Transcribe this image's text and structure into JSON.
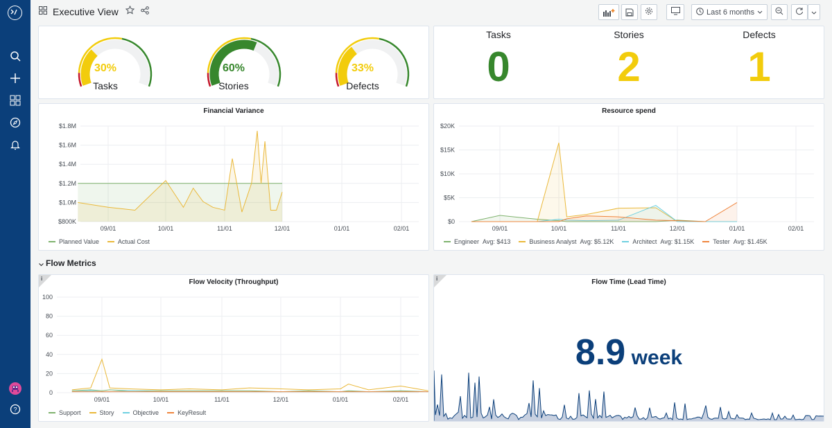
{
  "app": {
    "title": "Executive View"
  },
  "toolbar": {
    "time_range": "Last 6 months"
  },
  "gauges": [
    {
      "label": "Tasks",
      "value": "30%",
      "color": "#f2cc0c"
    },
    {
      "label": "Stories",
      "value": "60%",
      "color": "#37872d"
    },
    {
      "label": "Defects",
      "value": "33%",
      "color": "#f2cc0c"
    }
  ],
  "stats": [
    {
      "label": "Tasks",
      "value": "0",
      "color": "#37872d"
    },
    {
      "label": "Stories",
      "value": "2",
      "color": "#f2cc0c"
    },
    {
      "label": "Defects",
      "value": "1",
      "color": "#f2cc0c"
    }
  ],
  "financial": {
    "title": "Financial Variance",
    "y_ticks": [
      "$1.8M",
      "$1.6M",
      "$1.4M",
      "$1.2M",
      "$1.0M",
      "$800K"
    ],
    "x_ticks": [
      "09/01",
      "10/01",
      "11/01",
      "12/01",
      "01/01",
      "02/01"
    ],
    "legend": [
      "Planned Value",
      "Actual Cost"
    ]
  },
  "resource": {
    "title": "Resource spend",
    "y_ticks": [
      "$20K",
      "$15K",
      "$10K",
      "$5K",
      "$0"
    ],
    "x_ticks": [
      "09/01",
      "10/01",
      "11/01",
      "12/01",
      "01/01",
      "02/01"
    ],
    "legend": [
      {
        "name": "Engineer",
        "avg": "Avg: $413"
      },
      {
        "name": "Business Analyst",
        "avg": "Avg: $5.12K"
      },
      {
        "name": "Architect",
        "avg": "Avg: $1.15K"
      },
      {
        "name": "Tester",
        "avg": "Avg: $1.45K"
      }
    ]
  },
  "row": {
    "title": "Flow Metrics"
  },
  "velocity": {
    "title": "Flow Velocity (Throughput)",
    "y_ticks": [
      "100",
      "80",
      "60",
      "40",
      "20",
      "0"
    ],
    "x_ticks": [
      "09/01",
      "10/01",
      "11/01",
      "12/01",
      "01/01",
      "02/01"
    ],
    "legend": [
      "Support",
      "Story",
      "Objective",
      "KeyResult"
    ]
  },
  "flow_time": {
    "title": "Flow Time (Lead Time)",
    "value": "8.9",
    "unit": "week"
  },
  "colors": {
    "green": "#37872d",
    "yellow": "#f2cc0c",
    "red": "#c4162a",
    "navy": "#0b3f7a",
    "line_green": "#7eb26d",
    "line_yellow": "#eab839",
    "line_teal": "#6ed0e0",
    "line_orange": "#ef843c"
  },
  "chart_data": [
    {
      "type": "area",
      "title": "Financial Variance",
      "x": [
        "08/15",
        "08/31",
        "09/15",
        "10/01",
        "10/10",
        "10/15",
        "10/20",
        "10/25",
        "11/01",
        "11/05",
        "11/10",
        "11/15",
        "11/18",
        "11/20",
        "11/22",
        "11/25",
        "11/28",
        "12/01"
      ],
      "series": [
        {
          "name": "Planned Value",
          "values": [
            1200000,
            1200000,
            1200000,
            1200000,
            1200000,
            1200000,
            1200000,
            1200000,
            1200000,
            1200000,
            1200000,
            1200000,
            1200000,
            1200000,
            1200000,
            1200000,
            1200000,
            1200000
          ]
        },
        {
          "name": "Actual Cost",
          "values": [
            1000000,
            950000,
            920000,
            1230000,
            950000,
            1150000,
            1010000,
            950000,
            920000,
            1460000,
            900000,
            1200000,
            1750000,
            1200000,
            1640000,
            920000,
            920000,
            1110000
          ]
        }
      ],
      "ylim": [
        800000,
        1800000
      ]
    },
    {
      "type": "area",
      "title": "Resource spend",
      "x": [
        "08/15",
        "09/01",
        "09/20",
        "10/01",
        "10/05",
        "10/15",
        "11/01",
        "11/20",
        "12/01",
        "12/15",
        "01/01"
      ],
      "series": [
        {
          "name": "Engineer",
          "values": [
            0,
            1300,
            500,
            200,
            0,
            0,
            0,
            0,
            300,
            0,
            0
          ]
        },
        {
          "name": "Business Analyst",
          "values": [
            0,
            0,
            0,
            16500,
            1000,
            1500,
            2800,
            2900,
            0,
            0,
            0
          ]
        },
        {
          "name": "Architect",
          "values": [
            0,
            0,
            0,
            500,
            300,
            200,
            300,
            3400,
            0,
            0,
            0
          ]
        },
        {
          "name": "Tester",
          "values": [
            0,
            0,
            0,
            0,
            600,
            1200,
            1000,
            300,
            200,
            0,
            4000
          ]
        }
      ],
      "ylim": [
        0,
        20000
      ]
    },
    {
      "type": "line",
      "title": "Flow Velocity (Throughput)",
      "x": [
        "08/15",
        "08/25",
        "09/01",
        "09/05",
        "09/15",
        "10/01",
        "10/15",
        "11/01",
        "11/15",
        "12/01",
        "12/15",
        "01/01",
        "01/05",
        "01/15",
        "02/01",
        "02/15"
      ],
      "series": [
        {
          "name": "Support",
          "values": [
            2,
            3,
            2,
            3,
            2,
            2,
            2,
            2,
            2,
            1,
            2,
            1,
            2,
            1,
            2,
            1
          ]
        },
        {
          "name": "Story",
          "values": [
            3,
            5,
            35,
            5,
            4,
            3,
            4,
            3,
            5,
            4,
            3,
            4,
            9,
            3,
            7,
            2
          ]
        },
        {
          "name": "Objective",
          "values": [
            1,
            2,
            1,
            1,
            2,
            1,
            1,
            1,
            1,
            1,
            1,
            1,
            1,
            1,
            1,
            1
          ]
        },
        {
          "name": "KeyResult",
          "values": [
            1,
            1,
            1,
            1,
            1,
            1,
            1,
            1,
            1,
            1,
            1,
            1,
            1,
            1,
            1,
            1
          ]
        }
      ],
      "ylim": [
        0,
        100
      ]
    }
  ]
}
